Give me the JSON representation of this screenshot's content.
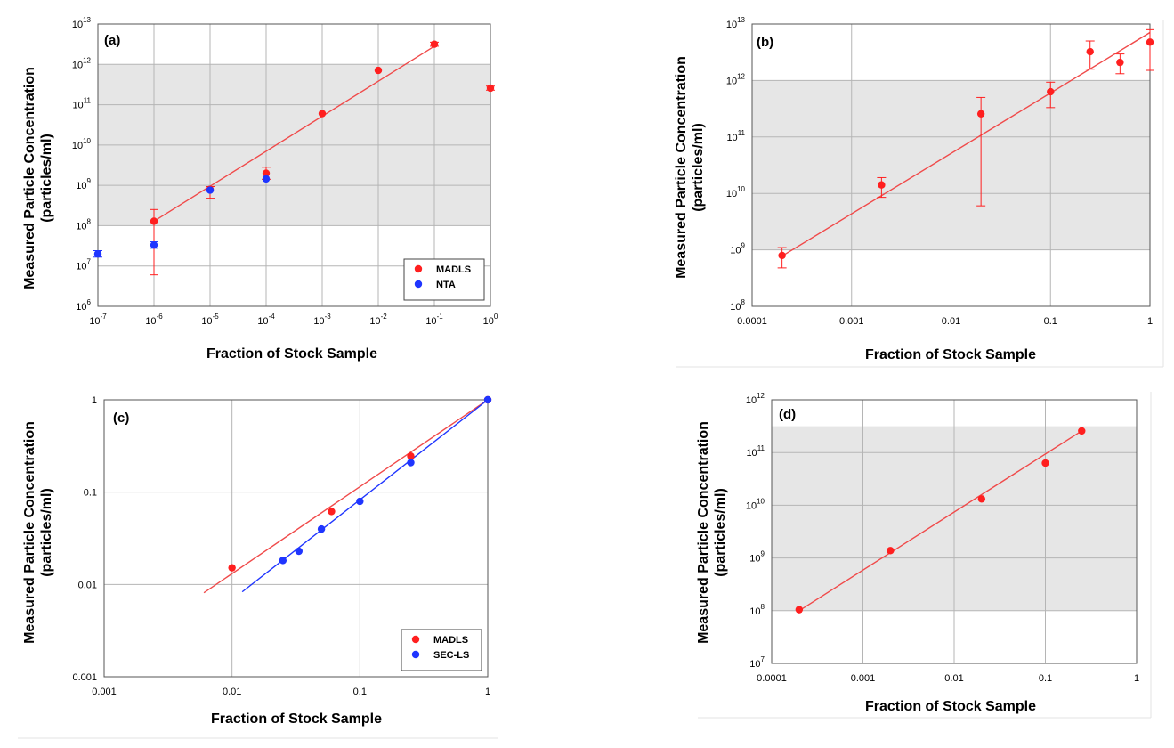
{
  "figure": {
    "colors": {
      "madls": "#ff1f1f",
      "nta": "#1f35ff",
      "fit": "#f04a4a",
      "fit_blue": "#1f35ff",
      "band": "#e6e6e6",
      "grid": "#b5b5b5"
    }
  },
  "chart_data": [
    {
      "id": "a",
      "type": "scatter",
      "panel_label": "(a)",
      "xlabel": "Fraction of Stock Sample",
      "ylabel": [
        "Measured Particle Concentration",
        "(particles/ml)"
      ],
      "xscale": "log",
      "yscale": "log",
      "xlim_exp": [
        -7,
        0
      ],
      "ylim_exp": [
        6,
        13
      ],
      "x_tick_style": "power",
      "x_ticks": [
        {
          "base": "10",
          "exp": "-7"
        },
        {
          "base": "10",
          "exp": "-6"
        },
        {
          "base": "10",
          "exp": "-5"
        },
        {
          "base": "10",
          "exp": "-4"
        },
        {
          "base": "10",
          "exp": "-3"
        },
        {
          "base": "10",
          "exp": "-2"
        },
        {
          "base": "10",
          "exp": "-1"
        },
        {
          "base": "10",
          "exp": "0"
        }
      ],
      "y_ticks": [
        {
          "base": "10",
          "exp": "6"
        },
        {
          "base": "10",
          "exp": "7"
        },
        {
          "base": "10",
          "exp": "8"
        },
        {
          "base": "10",
          "exp": "9"
        },
        {
          "base": "10",
          "exp": "10"
        },
        {
          "base": "10",
          "exp": "11"
        },
        {
          "base": "10",
          "exp": "12"
        },
        {
          "base": "10",
          "exp": "13"
        }
      ],
      "band_exp": [
        8,
        12
      ],
      "legend": {
        "position": "bottom-right",
        "entries": [
          {
            "label": "MADLS",
            "color": "#ff1f1f"
          },
          {
            "label": "NTA",
            "color": "#1f35ff"
          }
        ]
      },
      "series": [
        {
          "name": "MADLS",
          "color": "#ff1f1f",
          "points": [
            {
              "x": -6,
              "y": 8.11,
              "lo": 6.78,
              "hi": 8.4
            },
            {
              "x": -5,
              "y": 8.9,
              "lo": 8.68,
              "hi": 8.97
            },
            {
              "x": -4,
              "y": 9.3,
              "lo": 9.15,
              "hi": 9.45
            },
            {
              "x": -3,
              "y": 10.78
            },
            {
              "x": -2,
              "y": 11.85
            },
            {
              "x": -1,
              "y": 12.5,
              "lo": 12.45,
              "hi": 12.55
            },
            {
              "x": 0,
              "y": 11.41,
              "lo": 11.36,
              "hi": 11.46
            }
          ]
        },
        {
          "name": "NTA",
          "color": "#1f35ff",
          "points": [
            {
              "x": -7,
              "y": 7.3,
              "lo": 7.22,
              "hi": 7.38
            },
            {
              "x": -6,
              "y": 7.52,
              "lo": 7.44,
              "hi": 7.6
            },
            {
              "x": -5,
              "y": 8.88
            },
            {
              "x": -4,
              "y": 9.16
            }
          ]
        }
      ],
      "fits": [
        {
          "color": "#f04a4a",
          "from": [
            -6,
            8.11
          ],
          "to": [
            -1,
            12.45
          ]
        }
      ]
    },
    {
      "id": "b",
      "type": "scatter",
      "panel_label": "(b)",
      "xlabel": "Fraction of Stock Sample",
      "ylabel": [
        "Measured Particle Concentration",
        "(particles/ml)"
      ],
      "xscale": "log",
      "yscale": "log",
      "xlim_exp": [
        -4,
        0
      ],
      "ylim_exp": [
        8,
        13
      ],
      "x_tick_style": "decimal",
      "x_ticks": [
        {
          "label": "0.0001"
        },
        {
          "label": "0.001"
        },
        {
          "label": "0.01"
        },
        {
          "label": "0.1"
        },
        {
          "label": "1"
        }
      ],
      "y_ticks": [
        {
          "base": "10",
          "exp": "8"
        },
        {
          "base": "10",
          "exp": "9"
        },
        {
          "base": "10",
          "exp": "10"
        },
        {
          "base": "10",
          "exp": "11"
        },
        {
          "base": "10",
          "exp": "12"
        },
        {
          "base": "10",
          "exp": "13"
        }
      ],
      "band_exp": [
        9,
        12
      ],
      "series": [
        {
          "name": "MADLS",
          "color": "#ff1f1f",
          "points": [
            {
              "x": -3.699,
              "y": 8.9,
              "lo": 8.68,
              "hi": 9.04
            },
            {
              "x": -2.699,
              "y": 10.15,
              "lo": 9.93,
              "hi": 10.28
            },
            {
              "x": -1.699,
              "y": 11.41,
              "lo": 9.78,
              "hi": 11.7
            },
            {
              "x": -1,
              "y": 11.8,
              "lo": 11.52,
              "hi": 11.97
            },
            {
              "x": -0.602,
              "y": 12.51,
              "lo": 12.2,
              "hi": 12.7
            },
            {
              "x": -0.301,
              "y": 12.32,
              "lo": 12.12,
              "hi": 12.47
            },
            {
              "x": 0,
              "y": 12.68,
              "lo": 12.18,
              "hi": 12.9
            }
          ]
        }
      ],
      "fits": [
        {
          "color": "#f04a4a",
          "from": [
            -3.699,
            8.89
          ],
          "to": [
            0,
            12.85
          ]
        }
      ]
    },
    {
      "id": "c",
      "type": "scatter",
      "panel_label": "(c)",
      "xlabel": "Fraction of Stock Sample",
      "ylabel": [
        "Measured Particle Concentration",
        "(particles/ml)"
      ],
      "xscale": "log",
      "yscale": "log",
      "xlim_exp": [
        -3,
        0
      ],
      "ylim_exp": [
        -3,
        0
      ],
      "x_tick_style": "decimal",
      "x_ticks": [
        {
          "label": "0.001"
        },
        {
          "label": "0.01"
        },
        {
          "label": "0.1"
        },
        {
          "label": "1"
        }
      ],
      "y_ticks": [
        {
          "label": "0.001"
        },
        {
          "label": "0.01"
        },
        {
          "label": "0.1"
        },
        {
          "label": "1"
        }
      ],
      "band_exp": null,
      "legend": {
        "position": "bottom-right",
        "entries": [
          {
            "label": "MADLS",
            "color": "#ff1f1f"
          },
          {
            "label": "SEC-LS",
            "color": "#1f35ff"
          }
        ]
      },
      "series": [
        {
          "name": "MADLS",
          "color": "#ff1f1f",
          "points": [
            {
              "x": -2,
              "y": -1.82
            },
            {
              "x": -1.222,
              "y": -1.21
            },
            {
              "x": -0.602,
              "y": -0.61
            },
            {
              "x": 0,
              "y": 0
            }
          ]
        },
        {
          "name": "SEC-LS",
          "color": "#1f35ff",
          "points": [
            {
              "x": -1.602,
              "y": -1.74
            },
            {
              "x": -1.477,
              "y": -1.64
            },
            {
              "x": -1.301,
              "y": -1.4
            },
            {
              "x": -1,
              "y": -1.1
            },
            {
              "x": -0.602,
              "y": -0.68
            },
            {
              "x": 0,
              "y": 0
            }
          ]
        }
      ],
      "fits": [
        {
          "color": "#f04a4a",
          "from": [
            -2.22,
            -2.09
          ],
          "to": [
            0,
            0
          ]
        },
        {
          "color": "#1f35ff",
          "from": [
            -1.92,
            -2.08
          ],
          "to": [
            0,
            0
          ]
        }
      ]
    },
    {
      "id": "d",
      "type": "scatter",
      "panel_label": "(d)",
      "xlabel": "Fraction of Stock Sample",
      "ylabel": [
        "Measured Particle Concentration",
        "(particles/ml)"
      ],
      "xscale": "log",
      "yscale": "log",
      "xlim_exp": [
        -4,
        0
      ],
      "ylim_exp": [
        7,
        12
      ],
      "x_tick_style": "decimal",
      "x_ticks": [
        {
          "label": "0.0001"
        },
        {
          "label": "0.001"
        },
        {
          "label": "0.01"
        },
        {
          "label": "0.1"
        },
        {
          "label": "1"
        }
      ],
      "y_ticks": [
        {
          "base": "10",
          "exp": "7"
        },
        {
          "base": "10",
          "exp": "8"
        },
        {
          "base": "10",
          "exp": "9"
        },
        {
          "base": "10",
          "exp": "10"
        },
        {
          "base": "10",
          "exp": "11"
        },
        {
          "base": "10",
          "exp": "12"
        }
      ],
      "band_exp": [
        8,
        11.5
      ],
      "series": [
        {
          "name": "MADLS",
          "color": "#ff1f1f",
          "points": [
            {
              "x": -3.699,
              "y": 8.02
            },
            {
              "x": -2.699,
              "y": 9.14
            },
            {
              "x": -1.699,
              "y": 10.12
            },
            {
              "x": -1,
              "y": 10.8
            },
            {
              "x": -0.602,
              "y": 11.41
            }
          ]
        }
      ],
      "fits": [
        {
          "color": "#f04a4a",
          "from": [
            -3.699,
            8.0
          ],
          "to": [
            -0.602,
            11.41
          ]
        }
      ]
    }
  ]
}
